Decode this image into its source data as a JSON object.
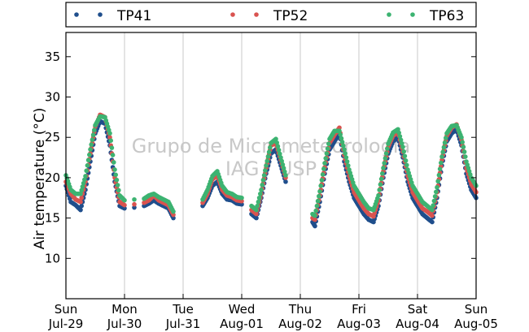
{
  "chart_data": {
    "type": "scatter",
    "title": "",
    "xlabel": "",
    "ylabel": "Air temperature (°C)",
    "watermark": [
      "Grupo de Micrometeorologia",
      "IAG / USP"
    ],
    "x_ticks": [
      {
        "day": "Sun",
        "date": "Jul-29"
      },
      {
        "day": "Mon",
        "date": "Jul-30"
      },
      {
        "day": "Tue",
        "date": "Jul-31"
      },
      {
        "day": "Wed",
        "date": "Aug-01"
      },
      {
        "day": "Thu",
        "date": "Aug-02"
      },
      {
        "day": "Fri",
        "date": "Aug-03"
      },
      {
        "day": "Sat",
        "date": "Aug-04"
      },
      {
        "day": "Sun",
        "date": "Aug-05"
      }
    ],
    "xlim": [
      "2012-07-29 00:00",
      "2012-08-05 00:00"
    ],
    "ylim": [
      5,
      38
    ],
    "y_ticks": [
      10,
      15,
      20,
      25,
      30,
      35
    ],
    "grid": "vertical",
    "legend_placement": "top",
    "gaps": [
      [
        "2012-07-30 20:00",
        "2012-07-31 08:00"
      ],
      [
        "2012-08-01 18:00",
        "2012-08-02 05:00"
      ]
    ],
    "series": [
      {
        "name": "TP41",
        "color": "#1f4e8c",
        "points": [
          [
            "07-29 00:00",
            19.0
          ],
          [
            "07-29 02:00",
            17.0
          ],
          [
            "07-29 04:00",
            16.6
          ],
          [
            "07-29 06:00",
            16.0
          ],
          [
            "07-29 08:00",
            18.5
          ],
          [
            "07-29 10:00",
            22.0
          ],
          [
            "07-29 12:00",
            25.5
          ],
          [
            "07-29 14:00",
            27.0
          ],
          [
            "07-29 16:00",
            26.7
          ],
          [
            "07-29 18:00",
            24.0
          ],
          [
            "07-29 20:00",
            19.5
          ],
          [
            "07-29 22:00",
            16.5
          ],
          [
            "07-30 00:00",
            16.2
          ],
          [
            "07-30 04:00",
            16.3
          ],
          [
            "07-30 08:00",
            16.5
          ],
          [
            "07-30 10:00",
            16.8
          ],
          [
            "07-30 12:00",
            17.2
          ],
          [
            "07-30 14:00",
            16.8
          ],
          [
            "07-30 16:00",
            16.5
          ],
          [
            "07-30 18:00",
            16.2
          ],
          [
            "07-30 20:00",
            15.0
          ],
          [
            "07-31 08:00",
            16.5
          ],
          [
            "07-31 10:00",
            17.5
          ],
          [
            "07-31 12:00",
            19.0
          ],
          [
            "07-31 14:00",
            19.5
          ],
          [
            "07-31 16:00",
            18.0
          ],
          [
            "07-31 18:00",
            17.3
          ],
          [
            "07-31 20:00",
            17.2
          ],
          [
            "07-31 22:00",
            16.8
          ],
          [
            "08-01 00:00",
            16.7
          ],
          [
            "08-01 04:00",
            15.5
          ],
          [
            "08-01 06:00",
            15.0
          ],
          [
            "08-01 08:00",
            17.5
          ],
          [
            "08-01 10:00",
            20.5
          ],
          [
            "08-01 12:00",
            23.0
          ],
          [
            "08-01 14:00",
            23.5
          ],
          [
            "08-01 16:00",
            21.5
          ],
          [
            "08-01 18:00",
            19.5
          ],
          [
            "08-02 05:00",
            14.5
          ],
          [
            "08-02 06:00",
            14.0
          ],
          [
            "08-02 08:00",
            17.0
          ],
          [
            "08-02 10:00",
            20.5
          ],
          [
            "08-02 12:00",
            23.5
          ],
          [
            "08-02 14:00",
            24.5
          ],
          [
            "08-02 16:00",
            25.5
          ],
          [
            "08-02 18:00",
            22.0
          ],
          [
            "08-02 20:00",
            19.5
          ],
          [
            "08-02 22:00",
            17.5
          ],
          [
            "08-03 00:00",
            16.5
          ],
          [
            "08-03 02:00",
            15.5
          ],
          [
            "08-03 04:00",
            14.8
          ],
          [
            "08-03 06:00",
            14.5
          ],
          [
            "08-03 08:00",
            16.5
          ],
          [
            "08-03 10:00",
            20.0
          ],
          [
            "08-03 12:00",
            23.0
          ],
          [
            "08-03 14:00",
            24.5
          ],
          [
            "08-03 16:00",
            25.0
          ],
          [
            "08-03 18:00",
            22.5
          ],
          [
            "08-03 20:00",
            19.5
          ],
          [
            "08-03 22:00",
            17.5
          ],
          [
            "08-04 00:00",
            16.5
          ],
          [
            "08-04 02:00",
            15.5
          ],
          [
            "08-04 04:00",
            15.0
          ],
          [
            "08-04 06:00",
            14.5
          ],
          [
            "08-04 08:00",
            17.5
          ],
          [
            "08-04 10:00",
            21.5
          ],
          [
            "08-04 12:00",
            24.5
          ],
          [
            "08-04 14:00",
            25.5
          ],
          [
            "08-04 16:00",
            26.0
          ],
          [
            "08-04 18:00",
            24.0
          ],
          [
            "08-04 20:00",
            20.5
          ],
          [
            "08-04 22:00",
            18.5
          ],
          [
            "08-05 00:00",
            17.5
          ]
        ]
      },
      {
        "name": "TP52",
        "color": "#d9534f",
        "points": [
          [
            "07-29 00:00",
            19.5
          ],
          [
            "07-29 02:00",
            18.0
          ],
          [
            "07-29 04:00",
            17.3
          ],
          [
            "07-29 06:00",
            17.0
          ],
          [
            "07-29 08:00",
            19.5
          ],
          [
            "07-29 10:00",
            23.0
          ],
          [
            "07-29 12:00",
            26.3
          ],
          [
            "07-29 14:00",
            27.8
          ],
          [
            "07-29 16:00",
            27.5
          ],
          [
            "07-29 18:00",
            25.0
          ],
          [
            "07-29 20:00",
            20.0
          ],
          [
            "07-29 22:00",
            17.0
          ],
          [
            "07-30 00:00",
            16.6
          ],
          [
            "07-30 04:00",
            16.7
          ],
          [
            "07-30 08:00",
            16.9
          ],
          [
            "07-30 10:00",
            17.2
          ],
          [
            "07-30 12:00",
            17.8
          ],
          [
            "07-30 14:00",
            17.2
          ],
          [
            "07-30 16:00",
            16.9
          ],
          [
            "07-30 18:00",
            16.6
          ],
          [
            "07-30 20:00",
            15.4
          ],
          [
            "07-31 08:00",
            16.9
          ],
          [
            "07-31 10:00",
            18.0
          ],
          [
            "07-31 12:00",
            19.8
          ],
          [
            "07-31 14:00",
            20.3
          ],
          [
            "07-31 16:00",
            18.5
          ],
          [
            "07-31 18:00",
            17.8
          ],
          [
            "07-31 20:00",
            17.6
          ],
          [
            "07-31 22:00",
            17.2
          ],
          [
            "08-01 00:00",
            17.1
          ],
          [
            "08-01 04:00",
            16.0
          ],
          [
            "08-01 06:00",
            15.5
          ],
          [
            "08-01 08:00",
            18.0
          ],
          [
            "08-01 10:00",
            21.2
          ],
          [
            "08-01 12:00",
            24.0
          ],
          [
            "08-01 14:00",
            24.3
          ],
          [
            "08-01 16:00",
            22.2
          ],
          [
            "08-01 18:00",
            20.0
          ],
          [
            "08-02 05:00",
            15.0
          ],
          [
            "08-02 06:00",
            14.8
          ],
          [
            "08-02 08:00",
            17.8
          ],
          [
            "08-02 10:00",
            21.3
          ],
          [
            "08-02 12:00",
            24.3
          ],
          [
            "08-02 14:00",
            25.3
          ],
          [
            "08-02 16:00",
            26.2
          ],
          [
            "08-02 18:00",
            22.8
          ],
          [
            "08-02 20:00",
            20.2
          ],
          [
            "08-02 22:00",
            18.2
          ],
          [
            "08-03 00:00",
            17.2
          ],
          [
            "08-03 02:00",
            16.2
          ],
          [
            "08-03 04:00",
            15.5
          ],
          [
            "08-03 06:00",
            15.2
          ],
          [
            "08-03 08:00",
            17.2
          ],
          [
            "08-03 10:00",
            20.8
          ],
          [
            "08-03 12:00",
            23.8
          ],
          [
            "08-03 14:00",
            25.2
          ],
          [
            "08-03 16:00",
            25.7
          ],
          [
            "08-03 18:00",
            23.2
          ],
          [
            "08-03 20:00",
            20.2
          ],
          [
            "08-03 22:00",
            18.2
          ],
          [
            "08-04 00:00",
            17.2
          ],
          [
            "08-04 02:00",
            16.2
          ],
          [
            "08-04 04:00",
            15.8
          ],
          [
            "08-04 06:00",
            15.3
          ],
          [
            "08-04 08:00",
            18.2
          ],
          [
            "08-04 10:00",
            22.2
          ],
          [
            "08-04 12:00",
            25.2
          ],
          [
            "08-04 14:00",
            26.2
          ],
          [
            "08-04 16:00",
            26.6
          ],
          [
            "08-04 18:00",
            24.7
          ],
          [
            "08-04 20:00",
            21.2
          ],
          [
            "08-04 22:00",
            19.2
          ],
          [
            "08-05 00:00",
            18.2
          ]
        ]
      },
      {
        "name": "TP63",
        "color": "#3cb371",
        "points": [
          [
            "07-29 00:00",
            20.3
          ],
          [
            "07-29 02:00",
            18.5
          ],
          [
            "07-29 04:00",
            18.0
          ],
          [
            "07-29 06:00",
            18.0
          ],
          [
            "07-29 08:00",
            20.2
          ],
          [
            "07-29 10:00",
            23.5
          ],
          [
            "07-29 12:00",
            26.5
          ],
          [
            "07-29 14:00",
            27.6
          ],
          [
            "07-29 16:00",
            27.5
          ],
          [
            "07-29 18:00",
            25.5
          ],
          [
            "07-29 20:00",
            21.0
          ],
          [
            "07-29 22:00",
            17.8
          ],
          [
            "07-30 00:00",
            17.2
          ],
          [
            "07-30 04:00",
            17.3
          ],
          [
            "07-30 08:00",
            17.4
          ],
          [
            "07-30 10:00",
            17.8
          ],
          [
            "07-30 12:00",
            18.0
          ],
          [
            "07-30 14:00",
            17.6
          ],
          [
            "07-30 16:00",
            17.3
          ],
          [
            "07-30 18:00",
            17.0
          ],
          [
            "07-30 20:00",
            15.8
          ],
          [
            "07-31 08:00",
            17.3
          ],
          [
            "07-31 10:00",
            18.5
          ],
          [
            "07-31 12:00",
            20.2
          ],
          [
            "07-31 14:00",
            20.8
          ],
          [
            "07-31 16:00",
            19.0
          ],
          [
            "07-31 18:00",
            18.2
          ],
          [
            "07-31 20:00",
            18.0
          ],
          [
            "07-31 22:00",
            17.6
          ],
          [
            "08-01 00:00",
            17.5
          ],
          [
            "08-01 04:00",
            16.5
          ],
          [
            "08-01 06:00",
            16.0
          ],
          [
            "08-01 08:00",
            18.5
          ],
          [
            "08-01 10:00",
            21.5
          ],
          [
            "08-01 12:00",
            24.3
          ],
          [
            "08-01 14:00",
            24.8
          ],
          [
            "08-01 16:00",
            22.5
          ],
          [
            "08-01 18:00",
            20.3
          ],
          [
            "08-02 05:00",
            15.5
          ],
          [
            "08-02 06:00",
            15.3
          ],
          [
            "08-02 08:00",
            18.3
          ],
          [
            "08-02 10:00",
            21.8
          ],
          [
            "08-02 12:00",
            24.8
          ],
          [
            "08-02 14:00",
            25.8
          ],
          [
            "08-02 16:00",
            25.8
          ],
          [
            "08-02 18:00",
            23.5
          ],
          [
            "08-02 20:00",
            21.0
          ],
          [
            "08-02 22:00",
            19.0
          ],
          [
            "08-03 00:00",
            18.0
          ],
          [
            "08-03 02:00",
            17.0
          ],
          [
            "08-03 04:00",
            16.2
          ],
          [
            "08-03 06:00",
            16.0
          ],
          [
            "08-03 08:00",
            17.8
          ],
          [
            "08-03 10:00",
            21.2
          ],
          [
            "08-03 12:00",
            24.2
          ],
          [
            "08-03 14:00",
            25.6
          ],
          [
            "08-03 16:00",
            26.0
          ],
          [
            "08-03 18:00",
            23.8
          ],
          [
            "08-03 20:00",
            21.0
          ],
          [
            "08-03 22:00",
            19.0
          ],
          [
            "08-04 00:00",
            18.0
          ],
          [
            "08-04 02:00",
            17.0
          ],
          [
            "08-04 04:00",
            16.5
          ],
          [
            "08-04 06:00",
            16.0
          ],
          [
            "08-04 08:00",
            18.8
          ],
          [
            "08-04 10:00",
            22.6
          ],
          [
            "08-04 12:00",
            25.5
          ],
          [
            "08-04 14:00",
            26.4
          ],
          [
            "08-04 16:00",
            26.5
          ],
          [
            "08-04 18:00",
            25.0
          ],
          [
            "08-04 20:00",
            22.0
          ],
          [
            "08-04 22:00",
            20.0
          ],
          [
            "08-05 00:00",
            19.0
          ]
        ]
      }
    ]
  }
}
